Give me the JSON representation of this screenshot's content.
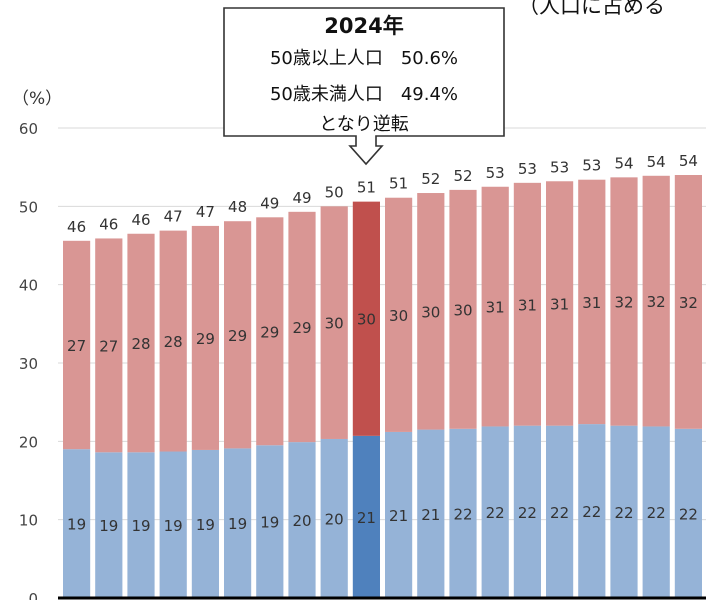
{
  "top_note": "（人口に占める",
  "callout": {
    "year": "2024年",
    "line1": "50歳以上人口　50.6%",
    "line2": "50歳未満人口　49.4%",
    "line3": "となり逆転"
  },
  "chart_data": {
    "type": "bar",
    "stacked": true,
    "ylabel": "（%）",
    "ylim": [
      0,
      60
    ],
    "yticks": [
      0,
      10,
      20,
      30,
      40,
      50,
      60
    ],
    "grid": true,
    "highlight_index": 9,
    "colors": {
      "lower": "#95b3d7",
      "upper": "#d99694",
      "lower_highlight": "#4f81bd",
      "upper_highlight": "#c0504d"
    },
    "totals": [
      46,
      46,
      46,
      47,
      47,
      48,
      49,
      49,
      50,
      51,
      51,
      52,
      52,
      53,
      53,
      53,
      53,
      54,
      54,
      54
    ],
    "series": [
      {
        "values": [
          19,
          19,
          19,
          19,
          19,
          19,
          19,
          20,
          20,
          21,
          21,
          21,
          22,
          22,
          22,
          22,
          22,
          22,
          22,
          22
        ],
        "exact": [
          19.0,
          18.6,
          18.6,
          18.7,
          18.9,
          19.1,
          19.5,
          19.9,
          20.3,
          20.7,
          21.2,
          21.5,
          21.6,
          21.9,
          22.0,
          22.0,
          22.2,
          22.0,
          21.9,
          21.6
        ]
      },
      {
        "values": [
          27,
          27,
          28,
          28,
          29,
          29,
          29,
          29,
          30,
          30,
          30,
          30,
          30,
          31,
          31,
          31,
          31,
          32,
          32,
          32
        ],
        "exact": [
          26.6,
          27.3,
          27.9,
          28.2,
          28.6,
          29.0,
          29.1,
          29.4,
          29.7,
          29.9,
          29.9,
          30.2,
          30.5,
          30.6,
          31.0,
          31.2,
          31.2,
          31.7,
          32.0,
          32.4
        ]
      }
    ]
  }
}
